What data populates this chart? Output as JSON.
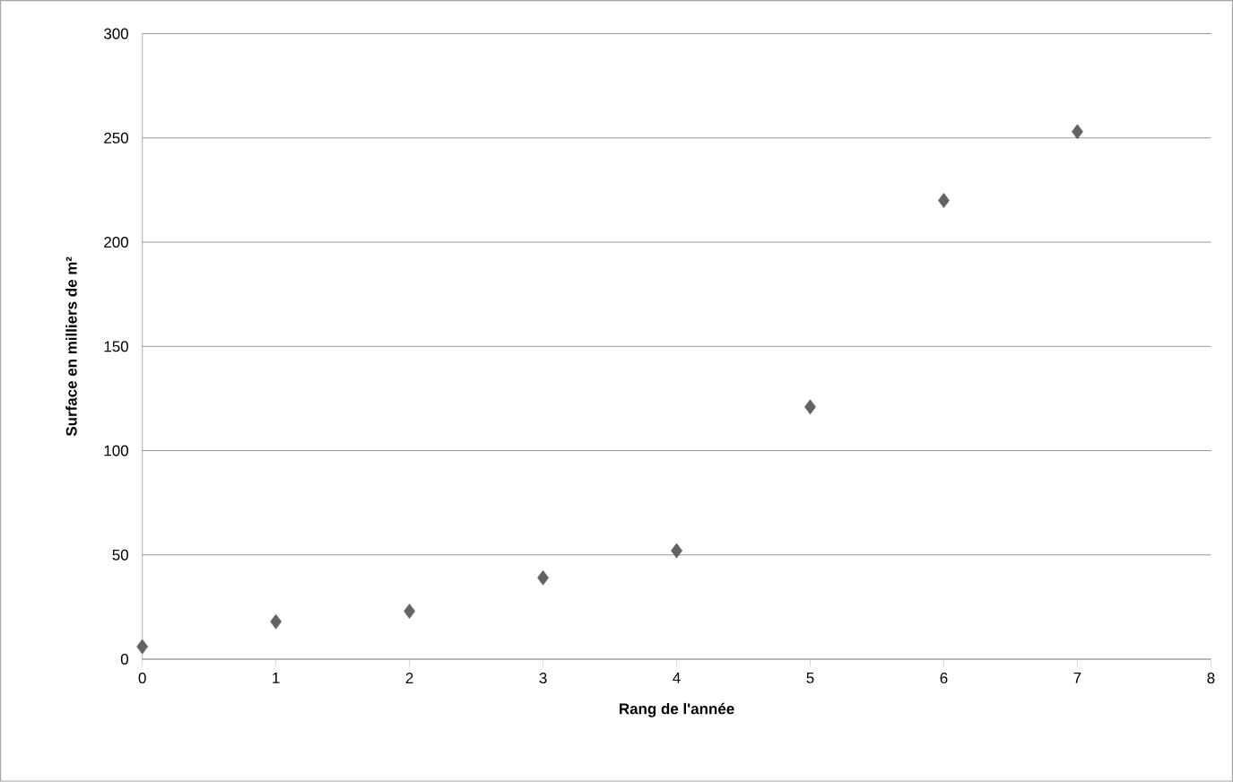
{
  "chart_data": {
    "type": "scatter",
    "xlabel": "Rang de l'année",
    "ylabel": "Surface en milliers de m²",
    "x": [
      0,
      1,
      2,
      3,
      4,
      5,
      6,
      7
    ],
    "values": [
      6,
      18,
      23,
      39,
      52,
      121,
      220,
      253
    ],
    "color": "#636363",
    "marker": "diamond",
    "xlim": [
      0,
      8
    ],
    "xticks": [
      0,
      1,
      2,
      3,
      4,
      5,
      6,
      7,
      8
    ],
    "ylim": [
      0,
      300
    ],
    "yticks": [
      0,
      50,
      100,
      150,
      200,
      250,
      300
    ],
    "grid": "y"
  }
}
